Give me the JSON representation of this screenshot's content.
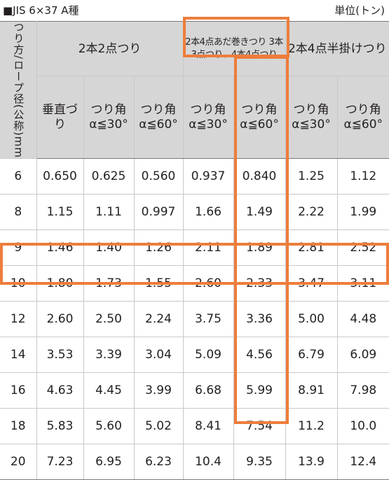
{
  "header": {
    "title": "■JIS 6×37 A種",
    "unit": "単位(トン)"
  },
  "table": {
    "corner_label": "つり方/ロープ径(公称)mm",
    "groups": [
      "2本2点つり",
      "2本4点あだ巻きつり 3本3点つり、4本4点つり",
      "2本4点半掛けつり"
    ],
    "columns": [
      "垂直づり",
      "つり角 α≦30°",
      "つり角 α≦60°",
      "つり角 α≦30°",
      "つり角 α≦60°",
      "つり角 α≦30°",
      "つり角 α≦60°"
    ],
    "rows": [
      {
        "d": "6",
        "v": [
          "0.650",
          "0.625",
          "0.560",
          "0.937",
          "0.840",
          "1.25",
          "1.12"
        ]
      },
      {
        "d": "8",
        "v": [
          "1.15",
          "1.11",
          "0.997",
          "1.66",
          "1.49",
          "2.22",
          "1.99"
        ]
      },
      {
        "d": "9",
        "v": [
          "1.46",
          "1.40",
          "1.26",
          "2.11",
          "1.89",
          "2.81",
          "2.52"
        ]
      },
      {
        "d": "10",
        "v": [
          "1.80",
          "1.73",
          "1.55",
          "2.60",
          "2.33",
          "3.47",
          "3.11"
        ]
      },
      {
        "d": "12",
        "v": [
          "2.60",
          "2.50",
          "2.24",
          "3.75",
          "3.36",
          "5.00",
          "4.48"
        ]
      },
      {
        "d": "14",
        "v": [
          "3.53",
          "3.39",
          "3.04",
          "5.09",
          "4.56",
          "6.79",
          "6.09"
        ]
      },
      {
        "d": "16",
        "v": [
          "4.63",
          "4.45",
          "3.99",
          "6.68",
          "5.99",
          "8.91",
          "7.98"
        ]
      },
      {
        "d": "18",
        "v": [
          "5.83",
          "5.60",
          "5.02",
          "8.41",
          "7.54",
          "11.2",
          "10.0"
        ]
      },
      {
        "d": "20",
        "v": [
          "7.23",
          "6.95",
          "6.23",
          "10.4",
          "9.35",
          "13.9",
          "12.4"
        ]
      }
    ]
  },
  "highlight_color": "#ee7d3b"
}
